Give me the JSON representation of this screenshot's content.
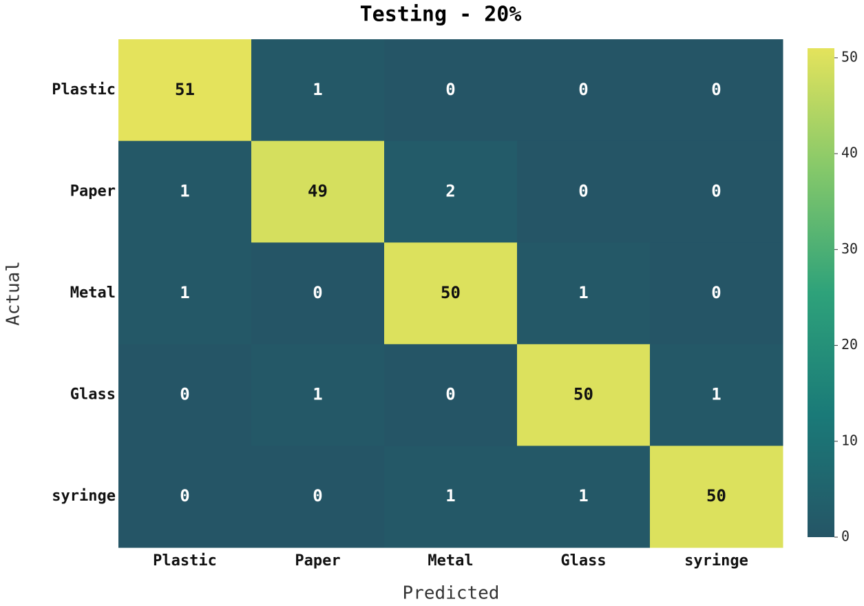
{
  "chart_data": {
    "type": "heatmap",
    "title": "Testing - 20%",
    "x_label": "Predicted",
    "y_label": "Actual",
    "x_categories": [
      "Plastic",
      "Paper",
      "Metal",
      "Glass",
      "syringe"
    ],
    "y_categories": [
      "Plastic",
      "Paper",
      "Metal",
      "Glass",
      "syringe"
    ],
    "values": [
      [
        51,
        1,
        0,
        0,
        0
      ],
      [
        1,
        49,
        2,
        0,
        0
      ],
      [
        1,
        0,
        50,
        1,
        0
      ],
      [
        0,
        1,
        0,
        50,
        1
      ],
      [
        0,
        0,
        1,
        1,
        50
      ]
    ],
    "zlim": [
      0,
      51
    ],
    "zticks": [
      0,
      10,
      20,
      30,
      40,
      50
    ],
    "colorscale": [
      "#255566",
      "#1a7a78",
      "#2ea27a",
      "#84c86a",
      "#e4e35c"
    ]
  }
}
